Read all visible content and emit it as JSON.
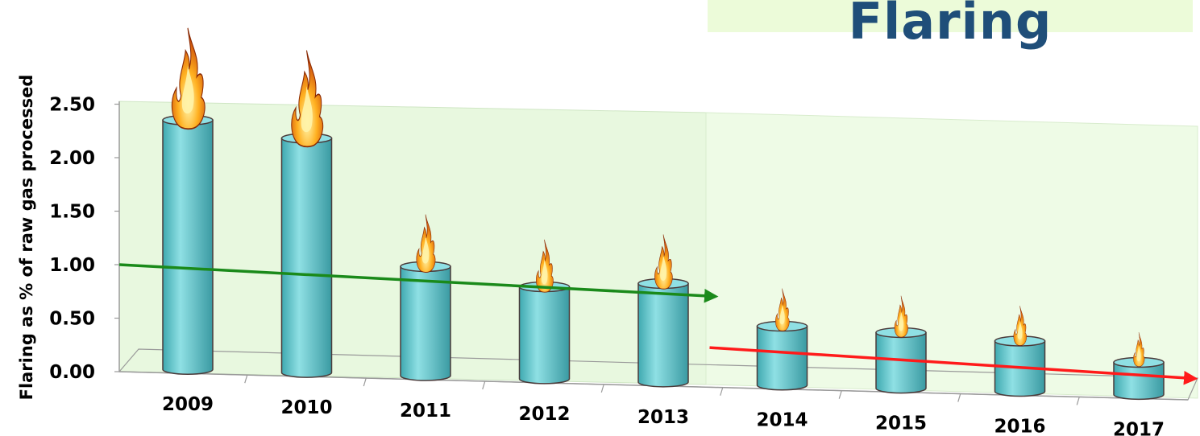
{
  "title": "Flaring",
  "chart_data": {
    "type": "bar",
    "title": "Flaring",
    "xlabel": "",
    "ylabel": "Flaring as % of raw gas processed",
    "categories": [
      "2009",
      "2010",
      "2011",
      "2012",
      "2013",
      "2014",
      "2015",
      "2016",
      "2017"
    ],
    "values": [
      2.33,
      2.19,
      1.02,
      0.86,
      0.92,
      0.55,
      0.52,
      0.47,
      0.3
    ],
    "ylim": [
      0,
      2.5
    ],
    "yticks": [
      "0.00",
      "0.50",
      "1.00",
      "1.50",
      "2.00",
      "2.50"
    ],
    "ytick_values": [
      0,
      0.5,
      1.0,
      1.5,
      2.0,
      2.5
    ],
    "grid": false,
    "trendlines": [
      {
        "color": "#1a8a1a",
        "from": [
          2009,
          1.0
        ],
        "to": [
          2013,
          0.85
        ]
      },
      {
        "color": "#ff1a1a",
        "from": [
          2014,
          0.37
        ],
        "to": [
          2017,
          0.2
        ]
      }
    ],
    "colors": {
      "bar": "#5ccbd0",
      "bar_top": "#8fe0e4",
      "bar_outline": "#4a3a3a",
      "left_panel": "#e8f8df",
      "right_panel": "#eefbe6",
      "title": "#1f4e79"
    },
    "decorations": "flame-icon"
  }
}
